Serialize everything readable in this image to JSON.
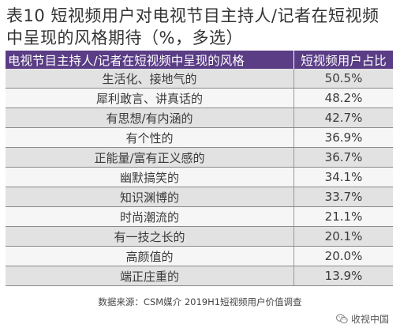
{
  "title": "表10  短视频用户对电视节目主持人/记者在短视频中呈现的风格期待（%，多选）",
  "table": {
    "headers": [
      "电视节目主持人/记者在短视频中呈现的风格",
      "短视频用户占比"
    ],
    "rows": [
      {
        "style": "生活化、接地气的",
        "value": "50.5%"
      },
      {
        "style": "犀利敢言、讲真话的",
        "value": "48.2%"
      },
      {
        "style": "有思想/有内涵的",
        "value": "42.7%"
      },
      {
        "style": "有个性的",
        "value": "36.9%"
      },
      {
        "style": "正能量/富有正义感的",
        "value": "36.7%"
      },
      {
        "style": "幽默搞笑的",
        "value": "34.1%"
      },
      {
        "style": "知识渊博的",
        "value": "33.7%"
      },
      {
        "style": "时尚潮流的",
        "value": "21.1%"
      },
      {
        "style": "有一技之长的",
        "value": "20.1%"
      },
      {
        "style": "高颜值的",
        "value": "20.0%"
      },
      {
        "style": "端正庄重的",
        "value": "13.9%"
      }
    ]
  },
  "source": "数据来源：CSM媒介 2019H1短视频用户价值调查",
  "watermark": {
    "icon": "wechat-icon",
    "text": "收视中国"
  },
  "colors": {
    "header_bg": "#5a3d85",
    "row_odd": "#e2e2e2",
    "row_even": "#f6f6f6"
  }
}
